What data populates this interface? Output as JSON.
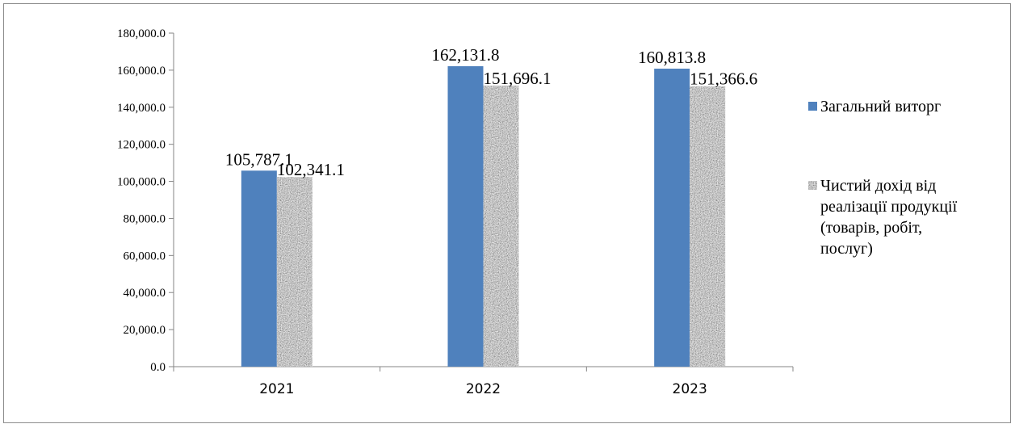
{
  "chart_data": {
    "type": "bar",
    "categories": [
      "2021",
      "2022",
      "2023"
    ],
    "series": [
      {
        "name": "Загальний виторг",
        "values": [
          105787.1,
          162131.8,
          160813.8
        ],
        "color": "#4f81bd",
        "pattern": "solid"
      },
      {
        "name": "Чистий дохід від реалізації продукції (товарів, робіт, послуг)",
        "values": [
          102341.1,
          151696.1,
          151366.6
        ],
        "color": "#a6a6a6",
        "pattern": "granite"
      }
    ],
    "ylim": [
      0,
      180000
    ],
    "y_ticks": [
      0,
      20000,
      40000,
      60000,
      80000,
      100000,
      120000,
      140000,
      160000,
      180000
    ],
    "y_tick_labels": [
      "0.0",
      "20,000.0",
      "40,000.0",
      "60,000.0",
      "80,000.0",
      "100,000.0",
      "120,000.0",
      "140,000.0",
      "160,000.0",
      "180,000.0"
    ],
    "data_labels": [
      [
        "105,787.1",
        "162,131.8",
        "160,813.8"
      ],
      [
        "102,341.1",
        "151,696.1",
        "151,366.6"
      ]
    ],
    "legend": {
      "placement": "right",
      "entries": [
        [
          "Загальний виторг"
        ],
        [
          "Чистий дохід від",
          "реалізації продукції",
          "(товарів, робіт,",
          "послуг)"
        ]
      ]
    },
    "title": "",
    "xlabel": "",
    "ylabel": "",
    "grid": false
  }
}
